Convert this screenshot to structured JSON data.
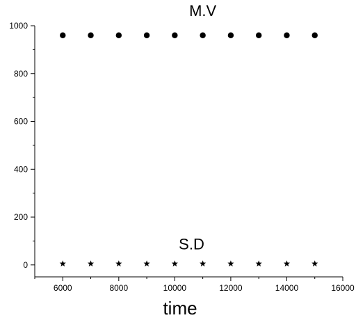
{
  "chart_data": {
    "type": "scatter",
    "title": "",
    "xlabel": "time",
    "ylabel": "",
    "xlim": [
      5000,
      16000
    ],
    "ylim": [
      -50,
      1000
    ],
    "x_ticks": [
      6000,
      8000,
      10000,
      12000,
      14000,
      16000
    ],
    "y_ticks": [
      0,
      200,
      400,
      600,
      800,
      1000
    ],
    "grid": false,
    "series": [
      {
        "marker": "circle",
        "x": [
          6000,
          7000,
          8000,
          9000,
          10000,
          11000,
          12000,
          13000,
          14000,
          15000
        ],
        "y": [
          960,
          960,
          960,
          960,
          960,
          960,
          960,
          960,
          960,
          960
        ]
      },
      {
        "marker": "star",
        "x": [
          6000,
          7000,
          8000,
          9000,
          10000,
          11000,
          12000,
          13000,
          14000,
          15000
        ],
        "y": [
          5,
          5,
          5,
          5,
          5,
          5,
          5,
          5,
          5,
          5
        ]
      }
    ],
    "annotations": [
      {
        "text": "M.V",
        "x": 11000,
        "y": 1040
      },
      {
        "text": "S.D",
        "x": 10600,
        "y": 65
      }
    ],
    "marker_color": "#000000"
  }
}
